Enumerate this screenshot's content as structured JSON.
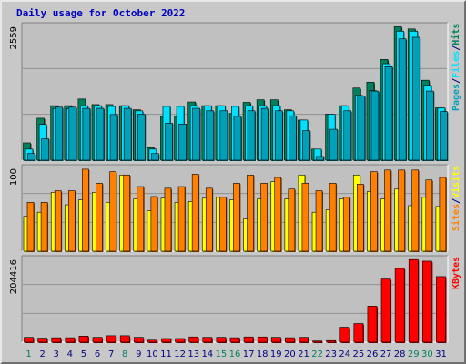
{
  "title": "Daily usage for October 2022",
  "colors": {
    "hits": "#00805c",
    "files": "#00e0ff",
    "pages": "#00a0b8",
    "visits": "#ffff00",
    "sites": "#ff8000",
    "kbytes": "#ff0000",
    "weekend_day_label": "#00805c",
    "weekday_label": "#000080",
    "plot_bg": "#c0c0c0",
    "frame_bg": "#c8c8c8"
  },
  "chart_data": [
    {
      "type": "bar",
      "name": "hits-files-pages",
      "max_label": "2559",
      "ylim": [
        0,
        2559
      ],
      "grid": true,
      "legend_vertical": [
        "Pages",
        "/",
        "Files",
        "/",
        "Hits"
      ],
      "categories": [
        "1",
        "2",
        "3",
        "4",
        "5",
        "6",
        "7",
        "8",
        "9",
        "10",
        "11",
        "12",
        "13",
        "14",
        "15",
        "16",
        "17",
        "18",
        "19",
        "20",
        "21",
        "22",
        "23",
        "24",
        "25",
        "26",
        "27",
        "28",
        "29",
        "30",
        "31"
      ],
      "series": [
        {
          "name": "Hits",
          "values": [
            331,
            802,
            1042,
            1042,
            1169,
            1063,
            1063,
            1042,
            964,
            240,
            837,
            837,
            1113,
            1042,
            1042,
            894,
            1106,
            1155,
            1155,
            964,
            767,
            212,
            880,
            1042,
            1380,
            1492,
            1926,
            2552,
            2510,
            1529,
            1000
          ]
        },
        {
          "name": "Files",
          "values": [
            212,
            684,
            987,
            987,
            1042,
            1042,
            1028,
            1042,
            943,
            212,
            1028,
            1028,
            1042,
            1042,
            1042,
            1028,
            1042,
            1042,
            1042,
            943,
            767,
            212,
            880,
            1042,
            1239,
            1330,
            1844,
            2467,
            2467,
            1435,
            1000
          ]
        },
        {
          "name": "Pages",
          "values": [
            127,
            410,
            1014,
            1014,
            991,
            991,
            873,
            991,
            880,
            127,
            708,
            691,
            991,
            944,
            944,
            837,
            944,
            991,
            944,
            849,
            566,
            71,
            590,
            944,
            1227,
            1321,
            1788,
            2320,
            2350,
            1321,
            930
          ]
        }
      ]
    },
    {
      "type": "bar",
      "name": "visits-sites",
      "max_label": "100",
      "ylim": [
        0,
        100
      ],
      "grid": true,
      "legend_vertical": [
        "Sites",
        "/",
        "Visits"
      ],
      "categories": [
        "1",
        "2",
        "3",
        "4",
        "5",
        "6",
        "7",
        "8",
        "9",
        "10",
        "11",
        "12",
        "13",
        "14",
        "15",
        "16",
        "17",
        "18",
        "19",
        "20",
        "21",
        "22",
        "23",
        "24",
        "25",
        "26",
        "27",
        "28",
        "29",
        "30",
        "31"
      ],
      "series": [
        {
          "name": "Visits",
          "values": [
            42,
            47,
            71,
            56,
            62,
            71,
            59,
            92,
            63,
            49,
            64,
            59,
            60,
            64,
            65,
            62,
            39,
            63,
            84,
            63,
            92,
            47,
            50,
            63,
            92,
            72,
            63,
            75,
            55,
            65,
            54
          ]
        },
        {
          "name": "Sites",
          "values": [
            59,
            59,
            73,
            73,
            99,
            82,
            96,
            92,
            78,
            66,
            76,
            78,
            93,
            76,
            65,
            82,
            92,
            82,
            89,
            75,
            82,
            73,
            82,
            65,
            81,
            96,
            98,
            98,
            98,
            86,
            89
          ]
        }
      ]
    },
    {
      "type": "bar",
      "name": "kbytes",
      "max_label": "204416",
      "ylim": [
        0,
        204416
      ],
      "grid": true,
      "legend_vertical": [
        "KBytes"
      ],
      "categories": [
        "1",
        "2",
        "3",
        "4",
        "5",
        "6",
        "7",
        "8",
        "9",
        "10",
        "11",
        "12",
        "13",
        "14",
        "15",
        "16",
        "17",
        "18",
        "19",
        "20",
        "21",
        "22",
        "23",
        "24",
        "25",
        "26",
        "27",
        "28",
        "29",
        "30",
        "31"
      ],
      "series": [
        {
          "name": "KBytes",
          "values": [
            12000,
            10000,
            11000,
            11000,
            15000,
            12000,
            16000,
            16000,
            12000,
            5000,
            9000,
            9000,
            13000,
            12000,
            12000,
            11000,
            13000,
            13000,
            12000,
            11000,
            12000,
            3000,
            4000,
            37000,
            46000,
            89000,
            156000,
            182000,
            204000,
            200000,
            162000
          ]
        }
      ]
    }
  ],
  "weekend_days": [
    1,
    8,
    15,
    16,
    22,
    29,
    30
  ]
}
